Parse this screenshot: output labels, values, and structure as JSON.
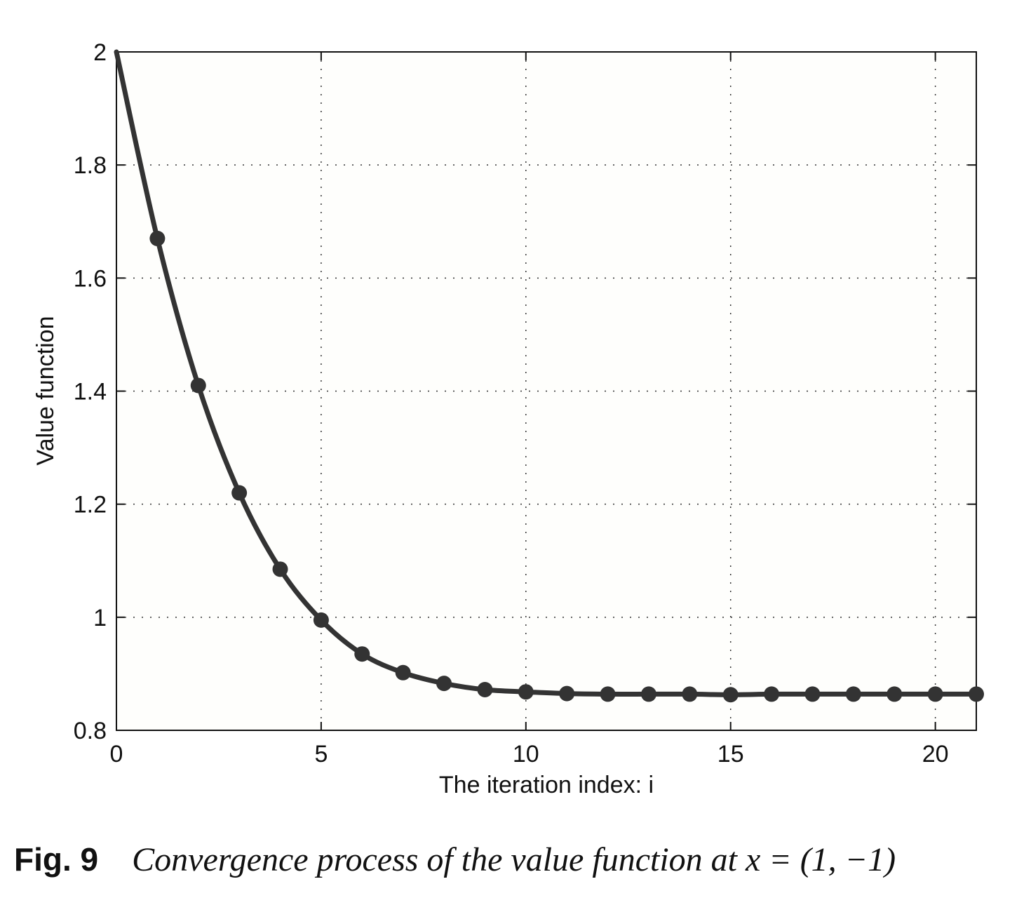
{
  "chart_data": {
    "type": "line",
    "title": "",
    "xlabel": "The iteration index: i",
    "ylabel": "Value function",
    "xlim": [
      0,
      21
    ],
    "ylim": [
      0.8,
      2
    ],
    "xticks": [
      0,
      5,
      10,
      15,
      20
    ],
    "xtick_labels": [
      "0",
      "5",
      "10",
      "15",
      "20"
    ],
    "yticks": [
      0.8,
      1,
      1.2,
      1.4,
      1.6,
      1.8,
      2
    ],
    "ytick_labels": [
      "0.8",
      "1",
      "1.2",
      "1.4",
      "1.6",
      "1.8",
      "2"
    ],
    "grid": true,
    "legend": false,
    "line_color": "#333333",
    "series": [
      {
        "x": [
          0,
          1,
          2,
          3,
          4,
          5,
          6,
          7,
          8,
          9,
          10,
          11,
          12,
          13,
          14,
          15,
          16,
          17,
          18,
          19,
          20,
          21
        ],
        "values": [
          2.0,
          1.67,
          1.41,
          1.22,
          1.085,
          0.995,
          0.935,
          0.902,
          0.883,
          0.872,
          0.868,
          0.865,
          0.864,
          0.864,
          0.864,
          0.863,
          0.864,
          0.864,
          0.864,
          0.864,
          0.864,
          0.864
        ],
        "markers": [
          false,
          true,
          true,
          true,
          true,
          true,
          true,
          true,
          true,
          true,
          true,
          true,
          true,
          true,
          true,
          true,
          true,
          true,
          true,
          true,
          true,
          true
        ]
      }
    ]
  },
  "caption": {
    "label": "Fig. 9",
    "text": "Convergence process of the value function at x = (1, −1)"
  }
}
